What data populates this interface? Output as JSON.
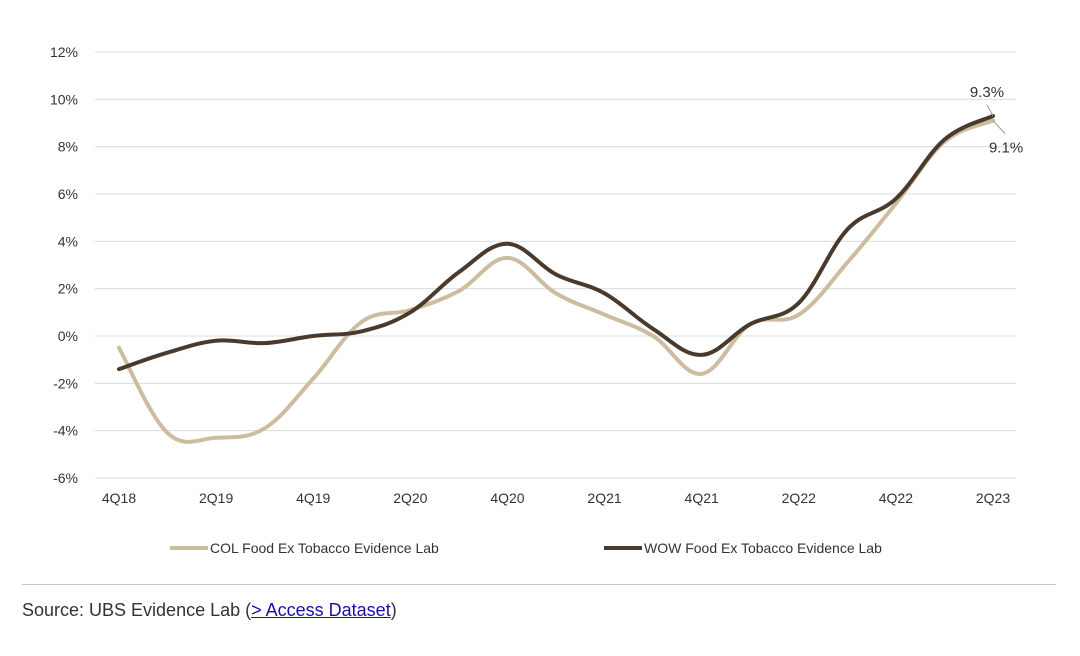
{
  "chart_data": {
    "type": "line",
    "title": "",
    "xlabel": "",
    "ylabel": "",
    "ylim": [
      -6,
      12
    ],
    "y_ticks": [
      12,
      10,
      8,
      6,
      4,
      2,
      0,
      -2,
      -4,
      -6
    ],
    "y_tick_labels": [
      "12%",
      "10%",
      "8%",
      "6%",
      "4%",
      "2%",
      "0%",
      "-2%",
      "-4%",
      "-6%"
    ],
    "x_tick_labels": [
      "4Q18",
      "2Q19",
      "4Q19",
      "2Q20",
      "4Q20",
      "2Q21",
      "4Q21",
      "2Q22",
      "4Q22",
      "2Q23"
    ],
    "grid": "horizontal",
    "legend_position": "bottom",
    "x": [
      "4Q18",
      "1Q19",
      "2Q19",
      "3Q19",
      "4Q19",
      "1Q20",
      "2Q20",
      "3Q20",
      "4Q20",
      "1Q21",
      "2Q21",
      "3Q21",
      "4Q21",
      "1Q22",
      "2Q22",
      "3Q22",
      "4Q22",
      "1Q23",
      "2Q23"
    ],
    "series": [
      {
        "name": "COL Food Ex Tobacco Evidence Lab",
        "color": "#cdbd9e",
        "values": [
          -0.5,
          -4.1,
          -4.3,
          -3.9,
          -1.8,
          0.6,
          1.1,
          1.9,
          3.3,
          1.8,
          0.9,
          0.0,
          -1.6,
          0.5,
          0.9,
          3.1,
          5.6,
          8.2,
          9.1
        ]
      },
      {
        "name": "WOW Food Ex Tobacco Evidence Lab",
        "color": "#4a3a2e",
        "values": [
          -1.4,
          -0.7,
          -0.2,
          -0.3,
          0.0,
          0.2,
          1.0,
          2.7,
          3.9,
          2.6,
          1.8,
          0.3,
          -0.8,
          0.5,
          1.4,
          4.5,
          5.8,
          8.3,
          9.3
        ]
      }
    ],
    "annotations": [
      {
        "series": 1,
        "point": "2Q23",
        "text": "9.3%"
      },
      {
        "series": 0,
        "point": "2Q23",
        "text": "9.1%"
      }
    ]
  },
  "footer": {
    "source_prefix": "Source: UBS Evidence Lab (",
    "link_text": "> Access Dataset",
    "source_suffix": ")"
  }
}
